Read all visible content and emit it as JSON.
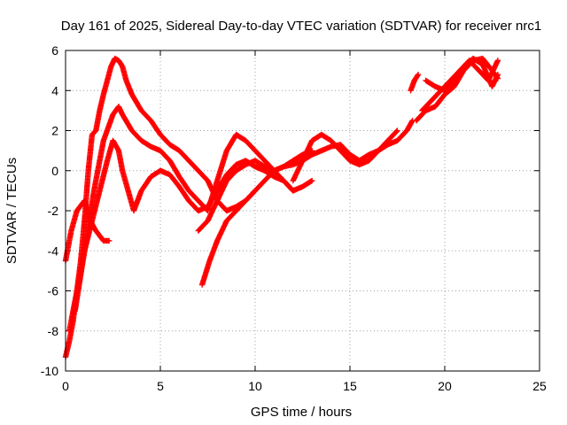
{
  "chart_data": {
    "type": "scatter",
    "title": "Day 161 of 2025, Sidereal Day-to-day VTEC variation (SDTVAR) for receiver nrc1",
    "xlabel": "GPS time / hours",
    "ylabel": "SDTVAR / TECUs",
    "xlim": [
      0,
      25
    ],
    "ylim": [
      -10,
      6
    ],
    "xticks": [
      0,
      5,
      10,
      15,
      20,
      25
    ],
    "yticks": [
      -10,
      -8,
      -6,
      -4,
      -2,
      0,
      2,
      4,
      6
    ],
    "grid": true,
    "marker": "plus",
    "color": "#ff0000",
    "series": [
      {
        "x": [
          0.0,
          0.2,
          0.4,
          0.6,
          0.8,
          1.0,
          1.2,
          1.4,
          1.6,
          1.8,
          2.0,
          2.2,
          2.4,
          2.6,
          2.8,
          3.0,
          3.2,
          3.5,
          4.0,
          4.5,
          5.0,
          5.5,
          6.0,
          6.5,
          7.0,
          7.5,
          8.0,
          8.5,
          9.0,
          9.5,
          10.0
        ],
        "y": [
          -9.3,
          -8.5,
          -7.5,
          -6.0,
          -4.5,
          -2.5,
          0.0,
          1.8,
          2.0,
          3.0,
          3.8,
          4.5,
          5.2,
          5.6,
          5.5,
          5.2,
          4.5,
          3.8,
          3.0,
          2.5,
          1.8,
          1.3,
          1.0,
          0.5,
          0.0,
          -0.5,
          -1.5,
          -2.0,
          -1.8,
          -1.5,
          -1.0
        ]
      },
      {
        "x": [
          0.5,
          1.0,
          1.5,
          2.0,
          2.5,
          2.8,
          3.0,
          3.5,
          4.0,
          4.5,
          5.0,
          5.5,
          6.0,
          6.5,
          7.0,
          7.5,
          8.0,
          8.5,
          9.0,
          9.5,
          10.0,
          10.5,
          11.0,
          11.5,
          12.0,
          12.5,
          13.0
        ],
        "y": [
          -7.0,
          -4.0,
          -1.0,
          1.5,
          2.8,
          3.2,
          2.8,
          2.0,
          1.5,
          1.2,
          1.0,
          0.5,
          -0.3,
          -1.0,
          -1.5,
          -2.0,
          -0.5,
          1.0,
          1.8,
          1.5,
          1.0,
          0.5,
          0.0,
          -0.5,
          -1.0,
          -0.8,
          -0.5
        ]
      },
      {
        "x": [
          0.2,
          0.6,
          1.0,
          1.4,
          1.8,
          2.2,
          2.5,
          2.8,
          3.0,
          3.3,
          3.6,
          4.0,
          4.5,
          5.0,
          5.5,
          6.0,
          6.5,
          7.0,
          7.5,
          8.0,
          8.5,
          9.0,
          9.5,
          10.0,
          10.5,
          11.0,
          11.5,
          12.0
        ],
        "y": [
          -8.0,
          -6.0,
          -4.0,
          -2.5,
          -1.0,
          0.5,
          1.5,
          1.0,
          0.0,
          -1.0,
          -2.0,
          -1.0,
          -0.3,
          0.0,
          -0.2,
          -0.8,
          -1.5,
          -2.0,
          -1.8,
          -1.0,
          -0.2,
          0.3,
          0.5,
          0.2,
          0.0,
          -0.3,
          -0.5,
          -1.0
        ]
      },
      {
        "x": [
          0.0,
          0.3,
          0.6,
          1.0,
          1.3,
          1.6,
          2.0,
          2.3
        ],
        "y": [
          -4.5,
          -3.0,
          -2.0,
          -1.5,
          -2.5,
          -3.0,
          -3.5,
          -3.5
        ]
      },
      {
        "x": [
          7.2,
          7.6,
          8.0,
          8.5,
          9.0,
          9.5,
          10.0,
          10.5,
          11.0,
          11.5,
          12.0,
          12.5,
          13.0,
          13.5,
          14.0,
          14.5,
          15.0,
          15.5,
          16.0,
          16.5,
          17.0,
          17.5,
          18.0,
          18.3
        ],
        "y": [
          -5.7,
          -4.5,
          -3.5,
          -2.5,
          -2.0,
          -1.5,
          -1.0,
          -0.5,
          0.0,
          0.2,
          0.3,
          0.5,
          0.8,
          1.0,
          1.2,
          1.3,
          0.8,
          0.5,
          0.8,
          1.0,
          1.3,
          1.5,
          2.0,
          2.5
        ]
      },
      {
        "x": [
          7.0,
          7.5,
          8.0,
          8.5,
          9.0,
          9.5,
          10.0,
          10.5,
          11.0,
          11.5,
          12.0,
          12.5,
          13.0
        ],
        "y": [
          -3.0,
          -2.5,
          -1.5,
          -0.5,
          0.0,
          0.3,
          0.5,
          0.2,
          0.0,
          0.2,
          0.5,
          0.8,
          1.0
        ]
      },
      {
        "x": [
          12.0,
          12.5,
          13.0,
          13.5,
          14.0,
          14.5,
          15.0,
          15.5,
          16.0,
          16.5,
          17.0,
          17.5
        ],
        "y": [
          -0.5,
          0.5,
          1.5,
          1.8,
          1.5,
          1.0,
          0.5,
          0.3,
          0.5,
          1.0,
          1.5,
          2.0
        ]
      },
      {
        "x": [
          18.2,
          18.4,
          18.6
        ],
        "y": [
          4.0,
          4.5,
          4.8
        ]
      },
      {
        "x": [
          18.5,
          19.0,
          19.5,
          20.0,
          20.5,
          21.0,
          21.5,
          22.0,
          22.5,
          22.8
        ],
        "y": [
          2.5,
          3.0,
          3.2,
          3.8,
          4.2,
          5.0,
          5.5,
          5.6,
          5.0,
          4.6
        ]
      },
      {
        "x": [
          18.8,
          19.3,
          19.8,
          20.3,
          20.8,
          21.3,
          21.8,
          22.3,
          22.8
        ],
        "y": [
          3.0,
          3.5,
          4.0,
          4.5,
          5.0,
          5.5,
          5.0,
          4.5,
          5.5
        ]
      },
      {
        "x": [
          19.0,
          19.5,
          20.0,
          20.5,
          21.0,
          21.5,
          22.0,
          22.5,
          22.8
        ],
        "y": [
          4.5,
          4.2,
          4.0,
          4.5,
          5.2,
          5.6,
          5.3,
          4.2,
          4.8
        ]
      }
    ]
  }
}
